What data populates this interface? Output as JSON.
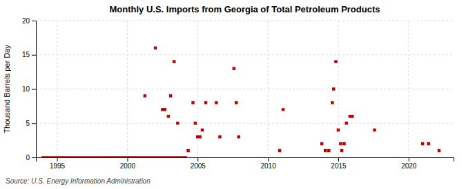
{
  "chart_data": {
    "type": "scatter",
    "title": "Monthly U.S. Imports from Georgia of Total Petroleum Products",
    "ylabel": "Thousand Barrels per Day",
    "source": "Source: U.S. Energy Information Administration",
    "xlim": [
      1993.5,
      2023.2
    ],
    "ylim": [
      0,
      20
    ],
    "xticks": [
      1995,
      2000,
      2005,
      2010,
      2015,
      2020
    ],
    "yticks": [
      0,
      5,
      10,
      15,
      20
    ],
    "grid": true,
    "series": [
      {
        "type": "line",
        "color": "#c00000",
        "line_style": "solid",
        "x": [
          1993.9,
          2004.25
        ],
        "values": [
          0,
          0
        ]
      },
      {
        "type": "scatter",
        "color": "#c00000",
        "marker": "square",
        "x": [
          2001.25,
          2002.0,
          2002.5,
          2002.67,
          2002.92,
          2003.08,
          2003.33,
          2003.58,
          2004.33,
          2004.67,
          2004.83,
          2005.0,
          2005.17,
          2005.33,
          2005.58,
          2006.33,
          2006.58,
          2007.58,
          2007.75,
          2007.92,
          2010.83,
          2011.08,
          2013.83,
          2014.08,
          2014.33,
          2014.58,
          2014.67,
          2014.83,
          2015.0,
          2015.17,
          2015.25,
          2015.42,
          2015.58,
          2015.83,
          2016.0,
          2017.58,
          2021.0,
          2021.42,
          2022.17
        ],
        "values": [
          9,
          16,
          7,
          7,
          6,
          9,
          14,
          5,
          1,
          8,
          5,
          3,
          3,
          4,
          8,
          8,
          3,
          13,
          8,
          3,
          1,
          7,
          2,
          1,
          1,
          8,
          10,
          14,
          4,
          2,
          1,
          2,
          5,
          6,
          6,
          4,
          2,
          2,
          1
        ]
      }
    ]
  }
}
